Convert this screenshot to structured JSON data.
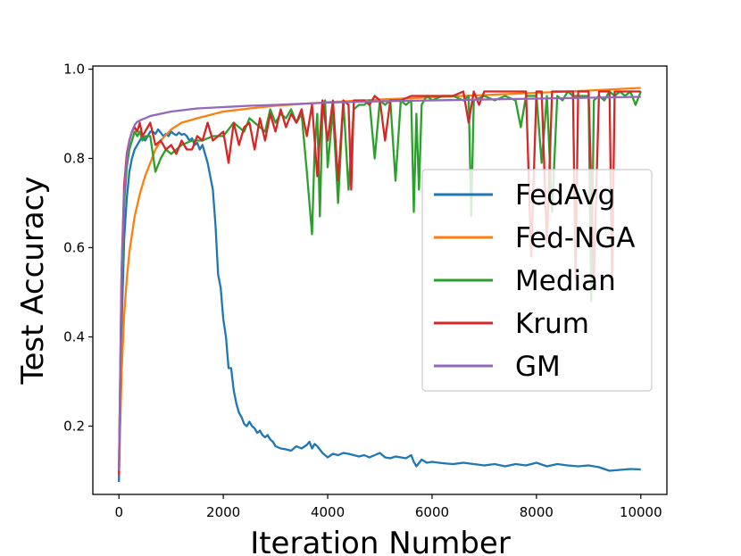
{
  "colors": {
    "FedAvg": "#1f77b4",
    "Fed-NGA": "#ff7f0e",
    "Median": "#2ca02c",
    "Krum": "#d62728",
    "GM": "#9467bd"
  },
  "chart_data": {
    "type": "line",
    "title": "",
    "xlabel": "Iteration Number",
    "ylabel": "Test Accuracy",
    "xlim": [
      -500,
      10500
    ],
    "ylim": [
      0.047,
      1.007
    ],
    "xticks": [
      0,
      2000,
      4000,
      6000,
      8000,
      10000
    ],
    "xtick_labels": [
      "0",
      "2000",
      "4000",
      "6000",
      "8000",
      "10000"
    ],
    "yticks": [
      0.2,
      0.4,
      0.6,
      0.8,
      1.0
    ],
    "ytick_labels": [
      "0.2",
      "0.4",
      "0.6",
      "0.8",
      "1.0"
    ],
    "legend_position": "center-right",
    "grid": false,
    "series": [
      {
        "name": "FedAvg",
        "x": [
          0,
          50,
          100,
          150,
          200,
          250,
          300,
          350,
          400,
          450,
          500,
          550,
          600,
          650,
          700,
          750,
          800,
          850,
          900,
          950,
          1000,
          1050,
          1100,
          1150,
          1200,
          1250,
          1300,
          1350,
          1400,
          1450,
          1500,
          1550,
          1600,
          1650,
          1700,
          1750,
          1800,
          1850,
          1900,
          1950,
          2000,
          2050,
          2100,
          2150,
          2200,
          2250,
          2300,
          2350,
          2400,
          2450,
          2500,
          2550,
          2600,
          2650,
          2700,
          2750,
          2800,
          2850,
          2900,
          2950,
          3000,
          3100,
          3200,
          3300,
          3400,
          3500,
          3600,
          3650,
          3700,
          3750,
          3800,
          3900,
          4000,
          4100,
          4200,
          4300,
          4400,
          4500,
          4600,
          4700,
          4800,
          4900,
          5000,
          5100,
          5200,
          5300,
          5400,
          5500,
          5600,
          5650,
          5700,
          5800,
          5900,
          6000,
          6200,
          6400,
          6600,
          6800,
          7000,
          7200,
          7400,
          7600,
          7800,
          8000,
          8200,
          8400,
          8600,
          8800,
          9000,
          9200,
          9400,
          9600,
          9800,
          10000
        ],
        "y": [
          0.075,
          0.42,
          0.62,
          0.71,
          0.77,
          0.8,
          0.82,
          0.83,
          0.84,
          0.85,
          0.84,
          0.85,
          0.86,
          0.86,
          0.855,
          0.865,
          0.858,
          0.85,
          0.855,
          0.85,
          0.86,
          0.855,
          0.852,
          0.858,
          0.853,
          0.855,
          0.85,
          0.84,
          0.845,
          0.83,
          0.835,
          0.82,
          0.83,
          0.81,
          0.79,
          0.76,
          0.73,
          0.65,
          0.54,
          0.51,
          0.44,
          0.4,
          0.33,
          0.33,
          0.28,
          0.25,
          0.23,
          0.22,
          0.205,
          0.2,
          0.21,
          0.2,
          0.195,
          0.185,
          0.19,
          0.18,
          0.175,
          0.18,
          0.17,
          0.165,
          0.155,
          0.15,
          0.148,
          0.145,
          0.155,
          0.15,
          0.158,
          0.165,
          0.15,
          0.16,
          0.155,
          0.14,
          0.13,
          0.138,
          0.135,
          0.14,
          0.138,
          0.135,
          0.132,
          0.135,
          0.13,
          0.135,
          0.14,
          0.13,
          0.128,
          0.132,
          0.13,
          0.128,
          0.135,
          0.12,
          0.11,
          0.125,
          0.118,
          0.12,
          0.117,
          0.115,
          0.118,
          0.115,
          0.112,
          0.115,
          0.11,
          0.115,
          0.112,
          0.118,
          0.11,
          0.115,
          0.112,
          0.11,
          0.112,
          0.108,
          0.1,
          0.102,
          0.104,
          0.103
        ]
      },
      {
        "name": "Fed-NGA",
        "x": [
          0,
          50,
          100,
          150,
          200,
          300,
          400,
          500,
          600,
          700,
          800,
          1000,
          1200,
          1500,
          2000,
          2500,
          3000,
          4000,
          5000,
          6000,
          7000,
          8000,
          9000,
          10000
        ],
        "y": [
          0.09,
          0.32,
          0.45,
          0.53,
          0.59,
          0.67,
          0.72,
          0.76,
          0.79,
          0.82,
          0.84,
          0.865,
          0.88,
          0.89,
          0.905,
          0.912,
          0.918,
          0.926,
          0.932,
          0.937,
          0.942,
          0.947,
          0.952,
          0.958
        ]
      },
      {
        "name": "Median",
        "x": [
          0,
          50,
          100,
          150,
          200,
          250,
          300,
          350,
          400,
          450,
          500,
          600,
          700,
          800,
          900,
          1000,
          1200,
          1400,
          1600,
          1800,
          2000,
          2200,
          2400,
          2500,
          2600,
          2700,
          2800,
          2900,
          3000,
          3100,
          3200,
          3300,
          3400,
          3500,
          3600,
          3700,
          3750,
          3800,
          3850,
          3900,
          3950,
          4000,
          4100,
          4200,
          4300,
          4400,
          4500,
          4600,
          4700,
          4800,
          4900,
          5000,
          5100,
          5200,
          5300,
          5400,
          5500,
          5600,
          5650,
          5700,
          5750,
          5800,
          5900,
          6000,
          6200,
          6400,
          6600,
          6700,
          6750,
          6800,
          7000,
          7200,
          7400,
          7600,
          7700,
          7800,
          7900,
          8000,
          8100,
          8200,
          8300,
          8400,
          8500,
          8600,
          8700,
          8800,
          8900,
          9000,
          9050,
          9100,
          9200,
          9300,
          9400,
          9500,
          9600,
          9700,
          9800,
          9900,
          10000
        ],
        "y": [
          0.1,
          0.5,
          0.7,
          0.78,
          0.82,
          0.84,
          0.86,
          0.85,
          0.86,
          0.84,
          0.85,
          0.85,
          0.77,
          0.8,
          0.82,
          0.81,
          0.83,
          0.84,
          0.84,
          0.85,
          0.85,
          0.88,
          0.86,
          0.89,
          0.88,
          0.87,
          0.86,
          0.91,
          0.88,
          0.9,
          0.89,
          0.91,
          0.88,
          0.9,
          0.77,
          0.63,
          0.82,
          0.9,
          0.67,
          0.9,
          0.93,
          0.78,
          0.91,
          0.7,
          0.93,
          0.73,
          0.91,
          0.92,
          0.92,
          0.93,
          0.8,
          0.93,
          0.92,
          0.93,
          0.75,
          0.93,
          0.92,
          0.93,
          0.68,
          0.9,
          0.73,
          0.92,
          0.94,
          0.93,
          0.94,
          0.94,
          0.93,
          0.94,
          0.67,
          0.93,
          0.94,
          0.93,
          0.94,
          0.93,
          0.87,
          0.94,
          0.94,
          0.94,
          0.79,
          0.94,
          0.68,
          0.94,
          0.93,
          0.95,
          0.94,
          0.94,
          0.94,
          0.94,
          0.48,
          0.93,
          0.94,
          0.93,
          0.95,
          0.94,
          0.95,
          0.94,
          0.95,
          0.92,
          0.95
        ]
      },
      {
        "name": "Krum",
        "x": [
          0,
          50,
          100,
          150,
          200,
          250,
          300,
          350,
          400,
          450,
          500,
          550,
          600,
          700,
          800,
          900,
          1000,
          1100,
          1200,
          1300,
          1400,
          1500,
          1600,
          1700,
          1800,
          1900,
          2000,
          2100,
          2200,
          2300,
          2400,
          2500,
          2600,
          2700,
          2800,
          2900,
          3000,
          3100,
          3200,
          3300,
          3400,
          3500,
          3600,
          3700,
          3800,
          3900,
          4000,
          4100,
          4200,
          4300,
          4400,
          4450,
          4500,
          4600,
          4700,
          4800,
          4900,
          5000,
          5100,
          5200,
          5400,
          5600,
          5800,
          6000,
          6200,
          6400,
          6600,
          6700,
          6800,
          6900,
          7000,
          7200,
          7400,
          7600,
          7800,
          7900,
          8000,
          8100,
          8200,
          8300,
          8400,
          8500,
          8600,
          8700,
          8750,
          8800,
          8900,
          9000,
          9100,
          9200,
          9300,
          9400,
          9450,
          9500,
          9600,
          9700,
          9800,
          9900,
          10000
        ],
        "y": [
          0.09,
          0.55,
          0.74,
          0.81,
          0.84,
          0.86,
          0.87,
          0.86,
          0.88,
          0.85,
          0.86,
          0.87,
          0.88,
          0.83,
          0.84,
          0.82,
          0.83,
          0.81,
          0.84,
          0.82,
          0.82,
          0.85,
          0.84,
          0.88,
          0.84,
          0.85,
          0.86,
          0.79,
          0.88,
          0.83,
          0.87,
          0.88,
          0.82,
          0.89,
          0.84,
          0.9,
          0.86,
          0.91,
          0.87,
          0.9,
          0.88,
          0.91,
          0.85,
          0.92,
          0.76,
          0.93,
          0.84,
          0.93,
          0.75,
          0.93,
          0.92,
          0.73,
          0.93,
          0.93,
          0.93,
          0.92,
          0.94,
          0.93,
          0.84,
          0.93,
          0.93,
          0.94,
          0.94,
          0.94,
          0.94,
          0.94,
          0.95,
          0.88,
          0.95,
          0.92,
          0.95,
          0.95,
          0.95,
          0.95,
          0.95,
          0.58,
          0.95,
          0.95,
          0.61,
          0.95,
          0.95,
          0.95,
          0.95,
          0.95,
          0.53,
          0.95,
          0.95,
          0.95,
          0.53,
          0.95,
          0.95,
          0.95,
          0.53,
          0.95,
          0.95,
          0.95,
          0.95,
          0.95,
          0.95
        ]
      },
      {
        "name": "GM",
        "x": [
          0,
          50,
          100,
          150,
          200,
          250,
          300,
          350,
          400,
          500,
          600,
          800,
          1000,
          1500,
          2000,
          2500,
          3000,
          4000,
          5000,
          6000,
          7000,
          8000,
          9000,
          10000
        ],
        "y": [
          0.1,
          0.55,
          0.72,
          0.8,
          0.84,
          0.86,
          0.875,
          0.882,
          0.885,
          0.89,
          0.895,
          0.9,
          0.905,
          0.912,
          0.915,
          0.918,
          0.92,
          0.925,
          0.928,
          0.93,
          0.932,
          0.934,
          0.936,
          0.938
        ]
      }
    ]
  }
}
